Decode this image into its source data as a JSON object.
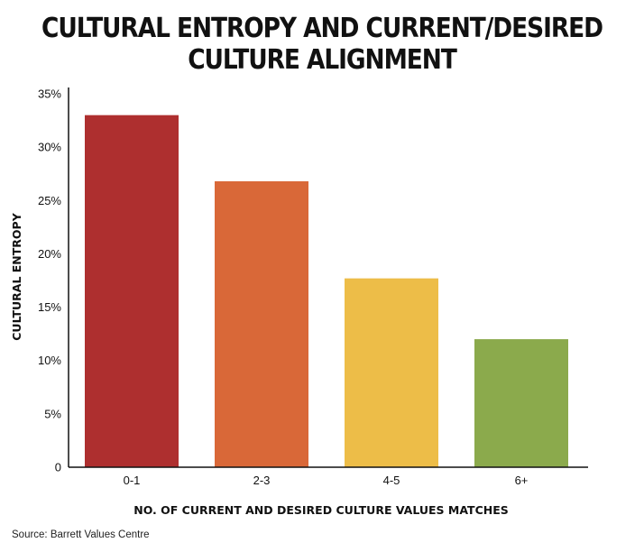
{
  "chart_data": {
    "type": "bar",
    "title_lines": [
      "CULTURAL ENTROPY AND CURRENT/DESIRED",
      "CULTURE ALIGNMENT"
    ],
    "xlabel": "NO. OF CURRENT AND DESIRED CULTURE VALUES MATCHES",
    "ylabel": "CULTURAL ENTROPY",
    "categories": [
      "0-1",
      "2-3",
      "4-5",
      "6+"
    ],
    "values": [
      33,
      26.8,
      17.7,
      12
    ],
    "colors": [
      "#ae2f2f",
      "#d96838",
      "#edbd48",
      "#8baa4c"
    ],
    "ylim": [
      0,
      35
    ],
    "yticks": [
      0,
      5,
      10,
      15,
      20,
      25,
      30,
      35
    ],
    "ytick_labels": [
      "0",
      "5%",
      "10%",
      "15%",
      "20%",
      "25%",
      "30%",
      "35%"
    ],
    "grid": false,
    "legend": "none"
  },
  "source": "Source: Barrett Values Centre"
}
